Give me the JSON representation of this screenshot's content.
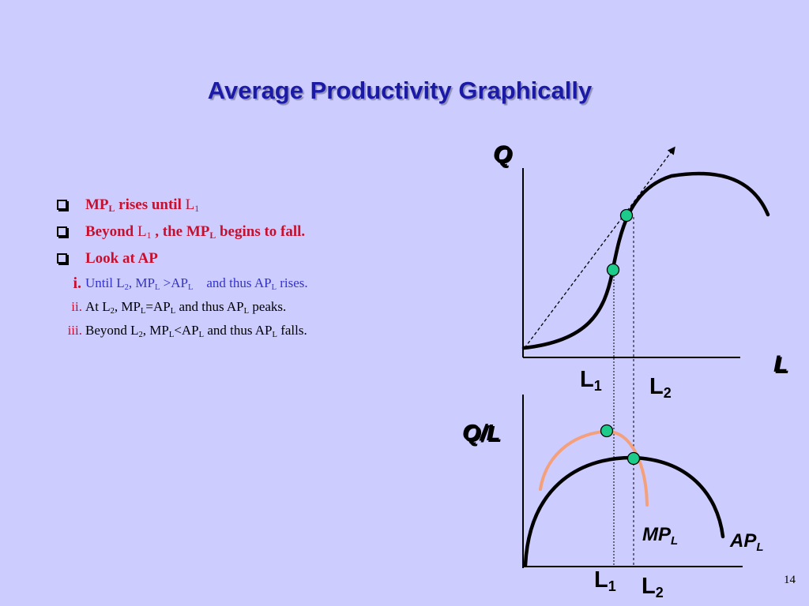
{
  "title": "Average Productivity Graphically",
  "bullets": {
    "b1": {
      "pre": "MP",
      "sub": "L",
      "mid": " rises until ",
      "var": "L",
      "var_sub": "1"
    },
    "b2": {
      "pre": "Beyond ",
      "var": "L",
      "var_sub": "1",
      "mid": " , the MP",
      "sub": "L",
      "post": " begins to fall."
    },
    "b3": {
      "text": "Look at AP"
    }
  },
  "sub_items": {
    "i": {
      "num": "i.",
      "p1": "Until L",
      "s1": "2",
      "p2": ", MP",
      "s2": "L",
      "p3": " >AP",
      "s3": "L",
      "p4": "    and thus AP",
      "s4": "L",
      "p5": " rises."
    },
    "ii": {
      "num": "ii.",
      "p1": "At L",
      "s1": "2",
      "p2": ", MP",
      "s2": "L",
      "p3": "=AP",
      "s3": "L",
      "p4": " and thus AP",
      "s4": "L",
      "p5": " peaks."
    },
    "iii": {
      "num": "iii.",
      "p1": "Beyond L",
      "s1": "2",
      "p2": ", MP",
      "s2": "L",
      "p3": "<AP",
      "s3": "L",
      "p4": " and thus AP",
      "s4": "L",
      "p5": " falls."
    }
  },
  "top_graph": {
    "y_label": "Q",
    "x_label": "L",
    "tick1": "L",
    "tick1_sub": "1",
    "tick2": "L",
    "tick2_sub": "2"
  },
  "bottom_graph": {
    "y_label": "Q/L",
    "tick1": "L",
    "tick1_sub": "1",
    "tick2": "L",
    "tick2_sub": "2",
    "mp_label": "MP",
    "mp_sub": "L",
    "ap_label": "AP",
    "ap_sub": "L"
  },
  "colors": {
    "background": "#ccccff",
    "title": "#1a1aa6",
    "bullet": "#c8102e",
    "mp_curve": "#f4a07a",
    "point": "#1dcc8a"
  },
  "page_number": "14"
}
